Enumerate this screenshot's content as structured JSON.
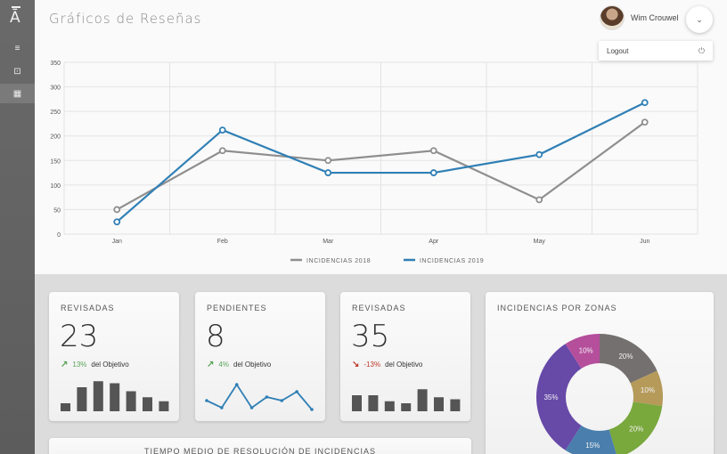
{
  "app": {
    "logo": "Ā",
    "page_title": "Gráficos de Reseñas"
  },
  "sidebar": {
    "items": [
      {
        "icon": "list-icon",
        "glyph": "≡"
      },
      {
        "icon": "inbox-icon",
        "glyph": "⊡"
      },
      {
        "icon": "dashboard-icon",
        "glyph": "▦"
      }
    ]
  },
  "user": {
    "name": "Wim Crouwel",
    "toggle_glyph": "⌄",
    "menu": {
      "logout_label": "Logout",
      "power_glyph": "⏻"
    }
  },
  "chart_data": {
    "type": "line",
    "categories": [
      "Jan",
      "Feb",
      "Mar",
      "Apr",
      "May",
      "Jun"
    ],
    "series": [
      {
        "name": "INCIDENCIAS 2018",
        "color": "#8f8f8f",
        "values": [
          50,
          170,
          150,
          170,
          70,
          228
        ]
      },
      {
        "name": "INCIDENCIAS 2019",
        "color": "#2f7fb5",
        "values": [
          25,
          212,
          125,
          125,
          162,
          268
        ]
      }
    ],
    "y_ticks": [
      "0",
      "50",
      "100",
      "150",
      "200",
      "250",
      "300",
      "350"
    ],
    "ylim": [
      0,
      350
    ],
    "grid": true,
    "legend_position": "bottom-center"
  },
  "cards": [
    {
      "title": "REVISADAS",
      "value": "23",
      "trend_glyph": "↗",
      "trend_color": "#5aa55a",
      "percent": "13%",
      "goal_label": "del Objetivo",
      "spark_type": "bar",
      "spark_values": [
        2,
        6,
        7.5,
        7,
        5,
        3.5,
        2.5
      ]
    },
    {
      "title": "PENDIENTES",
      "value": "8",
      "trend_glyph": "↗",
      "trend_color": "#5aa55a",
      "percent": "4%",
      "goal_label": "del Objetivo",
      "spark_type": "line",
      "spark_values": [
        3,
        1,
        7.5,
        1,
        4,
        3,
        5.5,
        0.5
      ]
    },
    {
      "title": "REVISADAS",
      "value": "35",
      "trend_glyph": "↘",
      "trend_color": "#c0392b",
      "percent": "-13%",
      "goal_label": "del Objetivo",
      "spark_type": "bar",
      "spark_values": [
        4,
        4,
        2.5,
        2,
        5.5,
        3.5,
        3
      ]
    }
  ],
  "zones": {
    "title": "INCIDENCIAS POR ZONAS",
    "type": "pie",
    "slices": [
      {
        "label": "20%",
        "value": 20,
        "color": "#757070"
      },
      {
        "label": "10%",
        "value": 10,
        "color": "#b59a5a"
      },
      {
        "label": "20%",
        "value": 20,
        "color": "#79a83d"
      },
      {
        "label": "15%",
        "value": 15,
        "color": "#4a7fad"
      },
      {
        "label": "35%",
        "value": 35,
        "color": "#6749a8"
      },
      {
        "label": "10%",
        "value": 10,
        "color": "#b54f9c"
      }
    ]
  },
  "bottom_card": {
    "title": "TIEMPO MEDIO DE RESOLUCIÓN DE INCIDENCIAS"
  }
}
